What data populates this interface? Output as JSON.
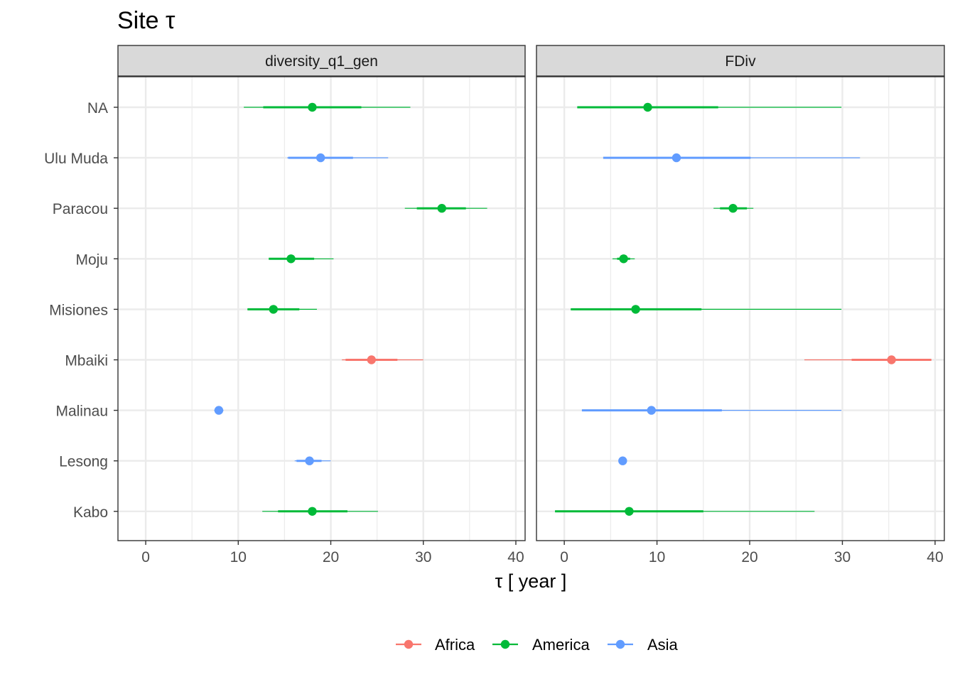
{
  "chart_data": {
    "type": "pointrange",
    "title": "Site τ",
    "xlabel": "τ [ year ]",
    "ylabel": "",
    "xlim": [
      -3,
      41
    ],
    "xticks": [
      0,
      10,
      20,
      30,
      40
    ],
    "xticks_minor": [
      5,
      15,
      25,
      35
    ],
    "grid": true,
    "legend_position": "bottom",
    "sites": [
      "NA",
      "Ulu Muda",
      "Paracou",
      "Moju",
      "Misiones",
      "Mbaiki",
      "Malinau",
      "Lesong",
      "Kabo"
    ],
    "groups": [
      {
        "name": "Africa",
        "color": "#F8766D"
      },
      {
        "name": "America",
        "color": "#00BA38"
      },
      {
        "name": "Asia",
        "color": "#619CFF"
      }
    ],
    "panels": [
      {
        "name": "diversity_q1_gen",
        "points": [
          {
            "site": "NA",
            "group": "America",
            "median": 18.0,
            "inner": [
              12.7,
              23.3
            ],
            "outer": [
              10.6,
              28.6
            ]
          },
          {
            "site": "Ulu Muda",
            "group": "Asia",
            "median": 18.9,
            "inner": [
              15.4,
              22.4
            ],
            "outer": [
              15.3,
              26.2
            ]
          },
          {
            "site": "Paracou",
            "group": "America",
            "median": 32.0,
            "inner": [
              29.3,
              34.6
            ],
            "outer": [
              28.0,
              36.9
            ]
          },
          {
            "site": "Moju",
            "group": "America",
            "median": 15.7,
            "inner": [
              13.3,
              18.2
            ],
            "outer": [
              13.3,
              20.3
            ]
          },
          {
            "site": "Misiones",
            "group": "America",
            "median": 13.8,
            "inner": [
              11.0,
              16.6
            ],
            "outer": [
              11.0,
              18.5
            ]
          },
          {
            "site": "Mbaiki",
            "group": "Africa",
            "median": 24.4,
            "inner": [
              21.6,
              27.2
            ],
            "outer": [
              21.2,
              30.0
            ]
          },
          {
            "site": "Malinau",
            "group": "Asia",
            "median": 7.9,
            "inner": [
              7.6,
              8.2
            ],
            "outer": [
              7.4,
              8.4
            ]
          },
          {
            "site": "Lesong",
            "group": "Asia",
            "median": 17.7,
            "inner": [
              16.3,
              19.0
            ],
            "outer": [
              16.1,
              20.0
            ]
          },
          {
            "site": "Kabo",
            "group": "America",
            "median": 18.0,
            "inner": [
              14.3,
              21.8
            ],
            "outer": [
              12.6,
              25.1
            ]
          }
        ]
      },
      {
        "name": "FDiv",
        "points": [
          {
            "site": "NA",
            "group": "America",
            "median": 9.0,
            "inner": [
              1.4,
              16.6
            ],
            "outer": [
              1.4,
              29.9
            ]
          },
          {
            "site": "Ulu Muda",
            "group": "Asia",
            "median": 12.1,
            "inner": [
              4.2,
              20.1
            ],
            "outer": [
              4.2,
              31.9
            ]
          },
          {
            "site": "Paracou",
            "group": "America",
            "median": 18.2,
            "inner": [
              16.8,
              19.7
            ],
            "outer": [
              16.1,
              20.4
            ]
          },
          {
            "site": "Moju",
            "group": "America",
            "median": 6.4,
            "inner": [
              5.7,
              7.1
            ],
            "outer": [
              5.2,
              7.6
            ]
          },
          {
            "site": "Misiones",
            "group": "America",
            "median": 7.7,
            "inner": [
              0.7,
              14.8
            ],
            "outer": [
              0.7,
              29.9
            ]
          },
          {
            "site": "Mbaiki",
            "group": "Africa",
            "median": 35.3,
            "inner": [
              31.0,
              39.6
            ],
            "outer": [
              25.9,
              39.6
            ]
          },
          {
            "site": "Malinau",
            "group": "Asia",
            "median": 9.4,
            "inner": [
              1.9,
              17.0
            ],
            "outer": [
              1.9,
              29.9
            ]
          },
          {
            "site": "Lesong",
            "group": "Asia",
            "median": 6.3,
            "inner": [
              6.1,
              6.5
            ],
            "outer": [
              6.0,
              6.6
            ]
          },
          {
            "site": "Kabo",
            "group": "America",
            "median": 7.0,
            "inner": [
              -1.0,
              15.0
            ],
            "outer": [
              -1.0,
              27.0
            ]
          }
        ]
      }
    ]
  }
}
